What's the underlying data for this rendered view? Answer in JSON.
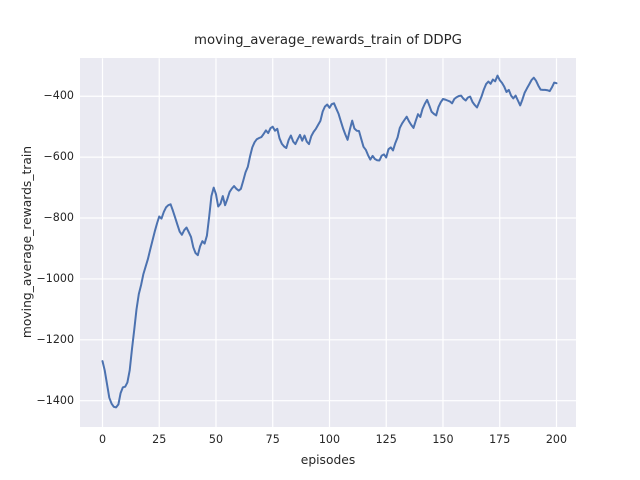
{
  "figure": {
    "background": "#ffffff",
    "plot_background": "#EAEAF2",
    "grid_color": "#ffffff",
    "text_color": "#262626"
  },
  "chart_data": {
    "type": "line",
    "title": "moving_average_rewards_train of DDPG",
    "xlabel": "episodes",
    "ylabel": "moving_average_rewards_train",
    "grid": true,
    "legend_position": "none",
    "style": "seaborn-darkgrid",
    "xlim": [
      -9.9,
      208.6
    ],
    "ylim": [
      -1489,
      -275
    ],
    "xticks": [
      {
        "value": 0,
        "label": "0"
      },
      {
        "value": 25,
        "label": "25"
      },
      {
        "value": 50,
        "label": "50"
      },
      {
        "value": 75,
        "label": "75"
      },
      {
        "value": 100,
        "label": "100"
      },
      {
        "value": 125,
        "label": "125"
      },
      {
        "value": 150,
        "label": "150"
      },
      {
        "value": 175,
        "label": "175"
      },
      {
        "value": 200,
        "label": "200"
      }
    ],
    "yticks": [
      {
        "value": -400,
        "label": "−400"
      },
      {
        "value": -600,
        "label": "−600"
      },
      {
        "value": -800,
        "label": "−800"
      },
      {
        "value": -1000,
        "label": "−1000"
      },
      {
        "value": -1200,
        "label": "−1200"
      },
      {
        "value": -1400,
        "label": "−1400"
      }
    ],
    "series": [
      {
        "name": "moving_average_rewards_train",
        "color": "#4C72B0",
        "line_width": 2,
        "x_start": 0,
        "x_step": 1,
        "values": [
          -1270,
          -1300,
          -1345,
          -1390,
          -1410,
          -1420,
          -1422,
          -1412,
          -1375,
          -1356,
          -1354,
          -1340,
          -1300,
          -1230,
          -1165,
          -1100,
          -1050,
          -1020,
          -985,
          -960,
          -935,
          -905,
          -875,
          -845,
          -818,
          -795,
          -802,
          -780,
          -765,
          -758,
          -755,
          -775,
          -798,
          -822,
          -845,
          -855,
          -840,
          -831,
          -846,
          -862,
          -896,
          -915,
          -922,
          -893,
          -876,
          -884,
          -858,
          -795,
          -728,
          -700,
          -722,
          -762,
          -753,
          -728,
          -758,
          -738,
          -714,
          -703,
          -695,
          -704,
          -710,
          -704,
          -678,
          -650,
          -632,
          -598,
          -568,
          -551,
          -541,
          -537,
          -534,
          -524,
          -512,
          -521,
          -505,
          -500,
          -513,
          -507,
          -538,
          -556,
          -565,
          -570,
          -544,
          -529,
          -549,
          -557,
          -541,
          -527,
          -546,
          -529,
          -549,
          -557,
          -531,
          -517,
          -507,
          -494,
          -481,
          -450,
          -434,
          -427,
          -438,
          -426,
          -423,
          -441,
          -458,
          -482,
          -506,
          -526,
          -543,
          -509,
          -480,
          -506,
          -513,
          -514,
          -541,
          -566,
          -576,
          -594,
          -608,
          -596,
          -606,
          -610,
          -611,
          -595,
          -591,
          -601,
          -574,
          -568,
          -578,
          -554,
          -535,
          -504,
          -489,
          -478,
          -467,
          -482,
          -494,
          -504,
          -481,
          -459,
          -468,
          -442,
          -425,
          -412,
          -431,
          -451,
          -458,
          -463,
          -436,
          -420,
          -409,
          -411,
          -414,
          -417,
          -423,
          -409,
          -403,
          -399,
          -398,
          -408,
          -414,
          -404,
          -401,
          -419,
          -429,
          -437,
          -419,
          -400,
          -378,
          -360,
          -352,
          -359,
          -345,
          -351,
          -332,
          -347,
          -356,
          -369,
          -386,
          -379,
          -398,
          -407,
          -398,
          -414,
          -430,
          -411,
          -388,
          -374,
          -361,
          -347,
          -339,
          -349,
          -365,
          -378,
          -379,
          -379,
          -380,
          -383,
          -371,
          -355,
          -357
        ]
      }
    ]
  }
}
